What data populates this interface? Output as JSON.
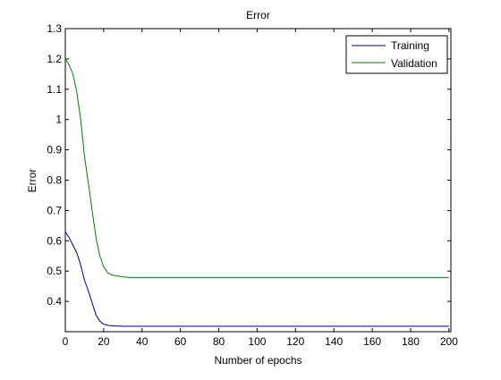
{
  "chart_data": {
    "type": "line",
    "title": "Error",
    "xlabel": "Number of epochs",
    "ylabel": "Error",
    "xlim": [
      0,
      201
    ],
    "ylim": [
      0.3,
      1.3
    ],
    "xticks": [
      0,
      20,
      40,
      60,
      80,
      100,
      120,
      140,
      160,
      180,
      200
    ],
    "yticks": [
      0.4,
      0.5,
      0.6,
      0.7,
      0.8,
      0.9,
      1,
      1.1,
      1.2,
      1.3
    ],
    "grid": false,
    "legend_position": "top-right",
    "series": [
      {
        "name": "Training",
        "color": "#00008f",
        "x": [
          0,
          2,
          4,
          6,
          8,
          10,
          12,
          14,
          16,
          18,
          20,
          22,
          24,
          26,
          30,
          40,
          60,
          80,
          100,
          120,
          140,
          160,
          180,
          200
        ],
        "y": [
          0.63,
          0.61,
          0.585,
          0.56,
          0.52,
          0.47,
          0.435,
          0.395,
          0.355,
          0.335,
          0.325,
          0.321,
          0.32,
          0.319,
          0.318,
          0.318,
          0.318,
          0.318,
          0.318,
          0.318,
          0.318,
          0.318,
          0.318,
          0.318
        ]
      },
      {
        "name": "Validation",
        "color": "#007f00",
        "x": [
          0,
          2,
          4,
          6,
          8,
          10,
          12,
          14,
          16,
          18,
          20,
          22,
          24,
          26,
          30,
          34,
          40,
          60,
          80,
          100,
          120,
          140,
          160,
          180,
          200
        ],
        "y": [
          1.2,
          1.18,
          1.15,
          1.09,
          1.0,
          0.88,
          0.79,
          0.7,
          0.61,
          0.55,
          0.515,
          0.495,
          0.488,
          0.485,
          0.481,
          0.479,
          0.479,
          0.479,
          0.479,
          0.479,
          0.479,
          0.479,
          0.479,
          0.479,
          0.479
        ]
      }
    ]
  }
}
